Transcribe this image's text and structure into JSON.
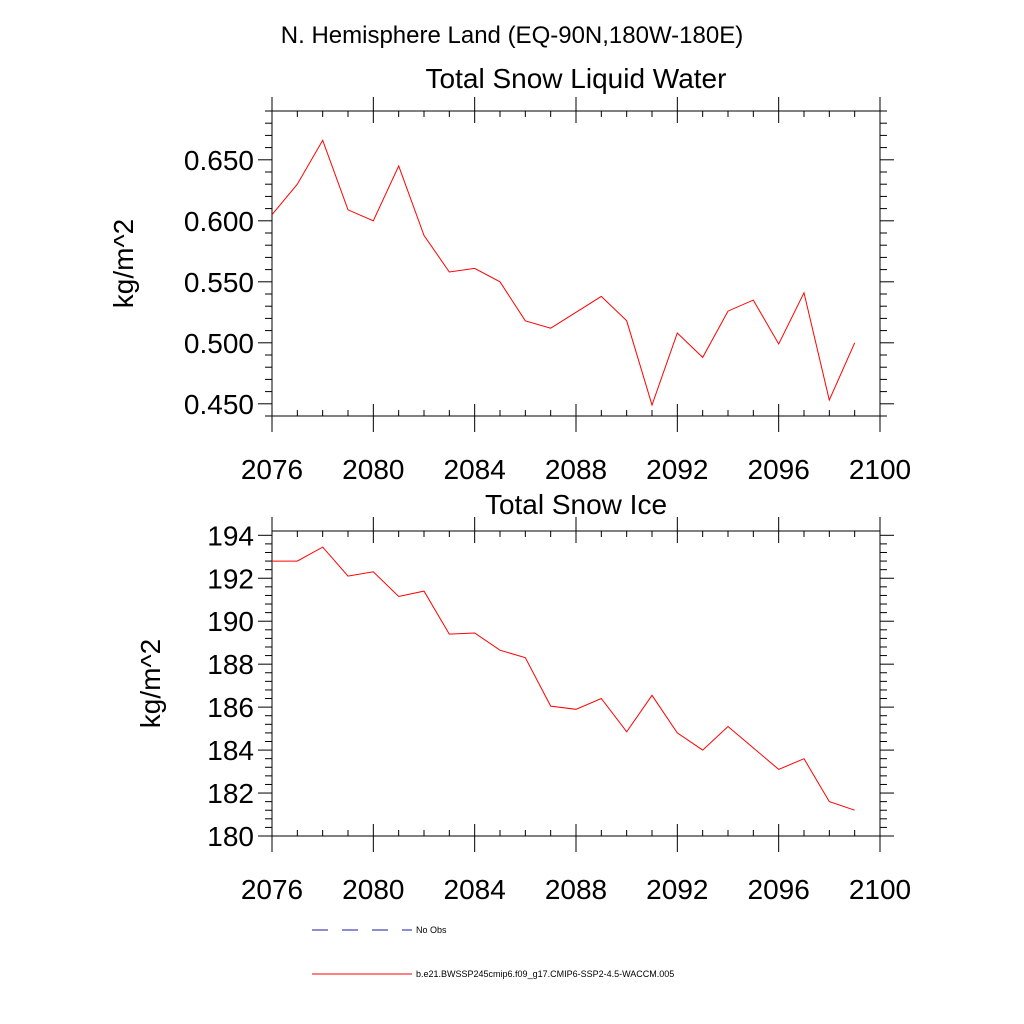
{
  "header": {
    "region_title": "N. Hemisphere Land (EQ-90N,180W-180E)"
  },
  "colors": {
    "series": "#ff0000",
    "obs": "#1a1aa0",
    "axis": "#000000"
  },
  "chart_data": [
    {
      "type": "line",
      "title": "Total Snow Liquid Water",
      "xlabel": "",
      "ylabel": "kg/m^2",
      "xlim": [
        2076,
        2100
      ],
      "ylim": [
        0.44,
        0.69
      ],
      "xticks": [
        2076,
        2080,
        2084,
        2088,
        2092,
        2096,
        2100
      ],
      "xtick_labels": [
        "2076",
        "2080",
        "2084",
        "2088",
        "2092",
        "2096",
        "2100"
      ],
      "yticks": [
        0.45,
        0.5,
        0.55,
        0.6,
        0.65
      ],
      "ytick_labels": [
        "0.450",
        "0.500",
        "0.550",
        "0.600",
        "0.650"
      ],
      "grid": false,
      "x": [
        2076,
        2077,
        2078,
        2079,
        2080,
        2081,
        2082,
        2083,
        2084,
        2085,
        2086,
        2087,
        2088,
        2089,
        2090,
        2091,
        2092,
        2093,
        2094,
        2095,
        2096,
        2097,
        2098,
        2099
      ],
      "series": [
        {
          "name": "b.e21.BWSSP245cmip6.f09_g17.CMIP6-SSP2-4.5-WACCM.005",
          "values": [
            0.605,
            0.63,
            0.666,
            0.609,
            0.6,
            0.645,
            0.588,
            0.558,
            0.561,
            0.55,
            0.518,
            0.512,
            0.525,
            0.538,
            0.518,
            0.449,
            0.508,
            0.488,
            0.526,
            0.535,
            0.499,
            0.541,
            0.453,
            0.5
          ]
        }
      ]
    },
    {
      "type": "line",
      "title": "Total Snow Ice",
      "xlabel": "",
      "ylabel": "kg/m^2",
      "xlim": [
        2076,
        2100
      ],
      "ylim": [
        180,
        194.2
      ],
      "xticks": [
        2076,
        2080,
        2084,
        2088,
        2092,
        2096,
        2100
      ],
      "xtick_labels": [
        "2076",
        "2080",
        "2084",
        "2088",
        "2092",
        "2096",
        "2100"
      ],
      "yticks": [
        180,
        182,
        184,
        186,
        188,
        190,
        192,
        194
      ],
      "ytick_labels": [
        "180",
        "182",
        "184",
        "186",
        "188",
        "190",
        "192",
        "194"
      ],
      "grid": false,
      "x": [
        2076,
        2077,
        2078,
        2079,
        2080,
        2081,
        2082,
        2083,
        2084,
        2085,
        2086,
        2087,
        2088,
        2089,
        2090,
        2091,
        2092,
        2093,
        2094,
        2095,
        2096,
        2097,
        2098,
        2099
      ],
      "series": [
        {
          "name": "b.e21.BWSSP245cmip6.f09_g17.CMIP6-SSP2-4.5-WACCM.005",
          "values": [
            192.8,
            192.8,
            193.45,
            192.1,
            192.3,
            191.15,
            191.4,
            189.4,
            189.45,
            188.65,
            188.3,
            186.05,
            185.9,
            186.4,
            184.85,
            186.55,
            184.8,
            184.0,
            185.1,
            184.1,
            183.1,
            183.6,
            181.6,
            181.2
          ]
        }
      ]
    }
  ],
  "legend": {
    "placement": "bottom",
    "items": [
      {
        "label": "No Obs",
        "style": "dashed",
        "color": "#1a1aa0"
      },
      {
        "label": "b.e21.BWSSP245cmip6.f09_g17.CMIP6-SSP2-4.5-WACCM.005",
        "style": "solid",
        "color": "#ff0000"
      }
    ]
  }
}
